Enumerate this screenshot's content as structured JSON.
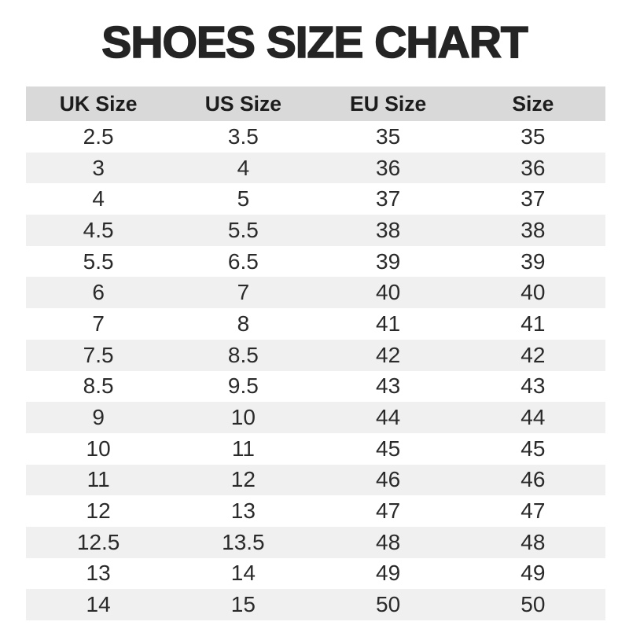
{
  "chart_data": {
    "type": "table",
    "title": "SHOES SIZE CHART",
    "columns": [
      "UK Size",
      "US Size",
      "EU Size",
      "Size"
    ],
    "rows": [
      [
        "2.5",
        "3.5",
        "35",
        "35"
      ],
      [
        "3",
        "4",
        "36",
        "36"
      ],
      [
        "4",
        "5",
        "37",
        "37"
      ],
      [
        "4.5",
        "5.5",
        "38",
        "38"
      ],
      [
        "5.5",
        "6.5",
        "39",
        "39"
      ],
      [
        "6",
        "7",
        "40",
        "40"
      ],
      [
        "7",
        "8",
        "41",
        "41"
      ],
      [
        "7.5",
        "8.5",
        "42",
        "42"
      ],
      [
        "8.5",
        "9.5",
        "43",
        "43"
      ],
      [
        "9",
        "10",
        "44",
        "44"
      ],
      [
        "10",
        "11",
        "45",
        "45"
      ],
      [
        "11",
        "12",
        "46",
        "46"
      ],
      [
        "12",
        "13",
        "47",
        "47"
      ],
      [
        "12.5",
        "13.5",
        "48",
        "48"
      ],
      [
        "13",
        "14",
        "49",
        "49"
      ],
      [
        "14",
        "15",
        "50",
        "50"
      ]
    ],
    "layout": {
      "legend": "none",
      "grid": "alternating-row-stripes",
      "first_data_row_background": "white",
      "alternation": "even rows striped"
    }
  },
  "style": {
    "page_bg": "#ffffff",
    "title_color": "#242424",
    "header_bg": "#d9d9d9",
    "header_text_color": "#1c1c1c",
    "alt_row_bg": "#f0f0f0",
    "row_bg": "#ffffff",
    "text_color": "#2a2a2a"
  }
}
